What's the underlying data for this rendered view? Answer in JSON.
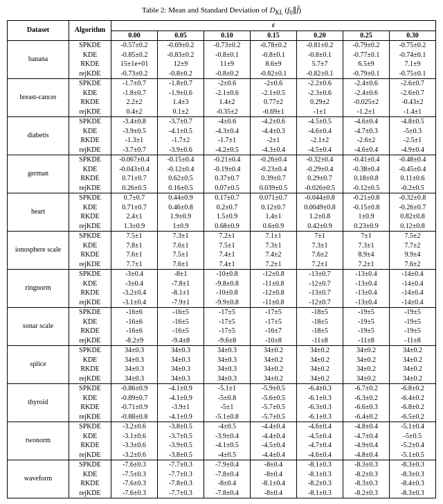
{
  "caption_prefix": "Table 2: Mean and Standard Deviation of ",
  "caption_math": "D_{KL}(f_0 || f̂)",
  "header": {
    "dataset": "Dataset",
    "algorithm": "Algorithm",
    "epsilon": "ε",
    "eps_values": [
      "0.00",
      "0.05",
      "0.10",
      "0.15",
      "0.20",
      "0.25",
      "0.30"
    ]
  },
  "algs": [
    "SPKDE",
    "KDE",
    "RKDE",
    "rejKDE"
  ],
  "rows": [
    {
      "dataset": "banana",
      "vals": [
        [
          "-0.57±0.2",
          "-0.69±0.2",
          "-0.73±0.2",
          "-0.78±0.2",
          "-0.81±0.2",
          "-0.79±0.2",
          "-0.75±0.2"
        ],
        [
          "-0.85±0.2",
          "-0.83±0.2",
          "-0.8±0.1",
          "-0.8±0.1",
          "-0.8±0.1",
          "-0.77±0.1",
          "-0.74±0.1"
        ],
        [
          "15±1e+01",
          "12±9",
          "11±9",
          "8.6±9",
          "5.7±7",
          "6.5±9",
          "7.1±9"
        ],
        [
          "-0.73±0.2",
          "-0.8±0.2",
          "-0.8±0.2",
          "-0.82±0.1",
          "-0.82±0.1",
          "-0.79±0.1",
          "-0.75±0.1"
        ]
      ]
    },
    {
      "dataset": "breast-cancer",
      "vals": [
        [
          "-1.7±0.7",
          "-1.8±0.7",
          "-2±0.6",
          "-2±0.6",
          "-2.2±0.6",
          "-2.4±0.6",
          "-2.6±0.7"
        ],
        [
          "-1.8±0.7",
          "-1.9±0.6",
          "-2.1±0.6",
          "-2.1±0.5",
          "-2.3±0.6",
          "-2.4±0.6",
          "-2.6±0.7"
        ],
        [
          "2.2±2",
          "1.4±3",
          "1.4±2",
          "0.77±2",
          "0.29±2",
          "-0.025±2",
          "-0.43±2"
        ],
        [
          "0.4±2",
          "0.1±2",
          "-0.35±2",
          "-0.69±1",
          "-1±1",
          "-1.2±1",
          "-1.4±1"
        ]
      ]
    },
    {
      "dataset": "diabetis",
      "vals": [
        [
          "-3.4±0.8",
          "-3.7±0.7",
          "-4±0.6",
          "-4.2±0.6",
          "-4.5±0.5",
          "-4.6±0.4",
          "-4.8±0.5"
        ],
        [
          "-3.9±0.5",
          "-4.1±0.5",
          "-4.3±0.4",
          "-4.4±0.3",
          "-4.6±0.4",
          "-4.7±0.3",
          "-5±0.3"
        ],
        [
          "-1.3±1",
          "-1.7±2",
          "-1.7±1",
          "-2±1",
          "-2.1±2",
          "-2.6±2",
          "-2.5±1"
        ],
        [
          "-3.7±0.7",
          "-3.9±0.6",
          "-4.2±0.5",
          "-4.3±0.4",
          "-4.5±0.4",
          "-4.6±0.4",
          "-4.9±0.4"
        ]
      ]
    },
    {
      "dataset": "german",
      "vals": [
        [
          "-0.067±0.4",
          "-0.15±0.4",
          "-0.21±0.4",
          "-0.26±0.4",
          "-0.32±0.4",
          "-0.41±0.4",
          "-0.48±0.4"
        ],
        [
          "-0.043±0.4",
          "-0.12±0.4",
          "-0.19±0.4",
          "-0.23±0.4",
          "-0.29±0.4",
          "-0.38±0.4",
          "-0.45±0.4"
        ],
        [
          "0.71±0.7",
          "0.62±0.5",
          "0.37±0.7",
          "0.39±0.7",
          "0.29±0.7",
          "0.18±0.8",
          "0.11±0.6"
        ],
        [
          "0.26±0.5",
          "0.16±0.5",
          "0.07±0.5",
          "0.039±0.5",
          "-0.026±0.5",
          "-0.12±0.5",
          "-0.2±0.5"
        ]
      ]
    },
    {
      "dataset": "heart",
      "vals": [
        [
          "0.7±0.7",
          "0.44±0.9",
          "0.17±0.7",
          "0.071±0.7",
          "-0.044±0.8",
          "-0.21±0.8",
          "-0.32±0.8"
        ],
        [
          "0.71±0.7",
          "0.46±0.8",
          "0.2±0.7",
          "0.12±0.7",
          "0.0049±0.8",
          "-0.15±0.8",
          "-0.26±0.7"
        ],
        [
          "2.4±1",
          "1.9±0.9",
          "1.5±0.9",
          "1.4±1",
          "1.2±0.8",
          "1±0.9",
          "0.82±0.8"
        ],
        [
          "1.3±0.9",
          "1±0.9",
          "0.68±0.9",
          "0.6±0.9",
          "0.42±0.9",
          "0.23±0.9",
          "0.12±0.8"
        ]
      ]
    },
    {
      "dataset": "ionosphere scale",
      "vals": [
        [
          "7.5±1",
          "7.3±1",
          "7.2±1",
          "7.1±1",
          "7±1",
          "7±1",
          "7.5±2"
        ],
        [
          "7.8±1",
          "7.6±1",
          "7.5±1",
          "7.3±1",
          "7.3±1",
          "7.3±1",
          "7.7±2"
        ],
        [
          "7.6±1",
          "7.5±1",
          "7.4±1",
          "7.4±2",
          "7.6±2",
          "8.9±4",
          "9.9±4"
        ],
        [
          "7.7±1",
          "7.6±1",
          "7.4±1",
          "7.2±1",
          "7.2±1",
          "7.2±1",
          "7.6±2"
        ]
      ]
    },
    {
      "dataset": "ringnorm",
      "vals": [
        [
          "-3±0.4",
          "-8±1",
          "-10±0.8",
          "-12±0.8",
          "-13±0.7",
          "-13±0.4",
          "-14±0.4"
        ],
        [
          "-3±0.4",
          "-7.8±1",
          "-9.8±0.8",
          "-11±0.8",
          "-12±0.7",
          "-13±0.4",
          "-14±0.4"
        ],
        [
          "-3.2±0.4",
          "-8.1±1",
          "-10±0.8",
          "-12±0.8",
          "-13±0.7",
          "-13±0.4",
          "-14±0.4"
        ],
        [
          "-3.1±0.4",
          "-7.9±1",
          "-9.9±0.8",
          "-11±0.8",
          "-12±0.7",
          "-13±0.4",
          "-14±0.4"
        ]
      ]
    },
    {
      "dataset": "sonar scale",
      "vals": [
        [
          "-16±6",
          "-16±5",
          "-17±5",
          "-17±5",
          "-18±5",
          "-19±5",
          "-19±5"
        ],
        [
          "-16±6",
          "-16±5",
          "-17±5",
          "-17±5",
          "-18±5",
          "-19±5",
          "-19±5"
        ],
        [
          "-16±6",
          "-16±5",
          "-17±5",
          "-16±7",
          "-18±5",
          "-19±5",
          "-19±5"
        ],
        [
          "-8.2±9",
          "-9.4±8",
          "-9.6±8",
          "-10±8",
          "-11±8",
          "-11±8",
          "-11±8"
        ]
      ]
    },
    {
      "dataset": "splice",
      "vals": [
        [
          "34±0.3",
          "34±0.3",
          "34±0.3",
          "34±0.2",
          "34±0.2",
          "34±0.2",
          "34±0.2"
        ],
        [
          "34±0.3",
          "34±0.3",
          "34±0.3",
          "34±0.2",
          "34±0.2",
          "34±0.2",
          "34±0.2"
        ],
        [
          "34±0.3",
          "34±0.3",
          "34±0.3",
          "34±0.2",
          "34±0.2",
          "34±0.2",
          "34±0.2"
        ],
        [
          "34±0.3",
          "34±0.3",
          "34±0.3",
          "34±0.2",
          "34±0.2",
          "34±0.2",
          "34±0.2"
        ]
      ]
    },
    {
      "dataset": "thyroid",
      "vals": [
        [
          "-0.86±0.9",
          "-4.1±0.9",
          "-5.1±1",
          "-5.9±0.5",
          "-6.4±0.3",
          "-6.7±0.2",
          "-6.8±0.2"
        ],
        [
          "-0.89±0.7",
          "-4.1±0.9",
          "-5±0.8",
          "-5.6±0.5",
          "-6.1±0.3",
          "-6.3±0.2",
          "-6.4±0.2"
        ],
        [
          "-0.71±0.9",
          "-3.9±1",
          "-5±1",
          "-5.7±0.5",
          "-6.3±0.3",
          "-6.6±0.3",
          "-6.8±0.2"
        ],
        [
          "-0.88±0.8",
          "-4.1±0.9",
          "-5.1±0.8",
          "-5.7±0.5",
          "-6.1±0.3",
          "-6.4±0.2",
          "-6.5±0.2"
        ]
      ]
    },
    {
      "dataset": "twonorm",
      "vals": [
        [
          "-3.2±0.6",
          "-3.8±0.5",
          "-4±0.5",
          "-4.4±0.4",
          "-4.6±0.4",
          "-4.8±0.4",
          "-5.1±0.4"
        ],
        [
          "-3.1±0.6",
          "-3.7±0.5",
          "-3.9±0.4",
          "-4.4±0.4",
          "-4.5±0.4",
          "-4.7±0.4",
          "-5±0.5"
        ],
        [
          "-3.3±0.6",
          "-3.9±0.5",
          "-4.1±0.5",
          "-4.5±0.4",
          "-4.7±0.4",
          "-4.9±0.4",
          "-5.2±0.4"
        ],
        [
          "-3.2±0.6",
          "-3.8±0.5",
          "-4±0.5",
          "-4.4±0.4",
          "-4.6±0.4",
          "-4.8±0.4",
          "-5.1±0.5"
        ]
      ]
    },
    {
      "dataset": "waveform",
      "vals": [
        [
          "-7.6±0.3",
          "-7.7±0.3",
          "-7.9±0.4",
          "-8±0.4",
          "-8.1±0.3",
          "-8.3±0.3",
          "-8.3±0.3"
        ],
        [
          "-7.5±0.3",
          "-7.7±0.3",
          "-7.8±0.4",
          "-8±0.4",
          "-8.1±0.3",
          "-8.2±0.3",
          "-8.3±0.3"
        ],
        [
          "-7.6±0.3",
          "-7.8±0.3",
          "-8±0.4",
          "-8.1±0.4",
          "-8.2±0.3",
          "-8.3±0.3",
          "-8.4±0.3"
        ],
        [
          "-7.6±0.3",
          "-7.7±0.3",
          "-7.8±0.4",
          "-8±0.4",
          "-8.1±0.3",
          "-8.2±0.3",
          "-8.3±0.3"
        ]
      ]
    }
  ]
}
